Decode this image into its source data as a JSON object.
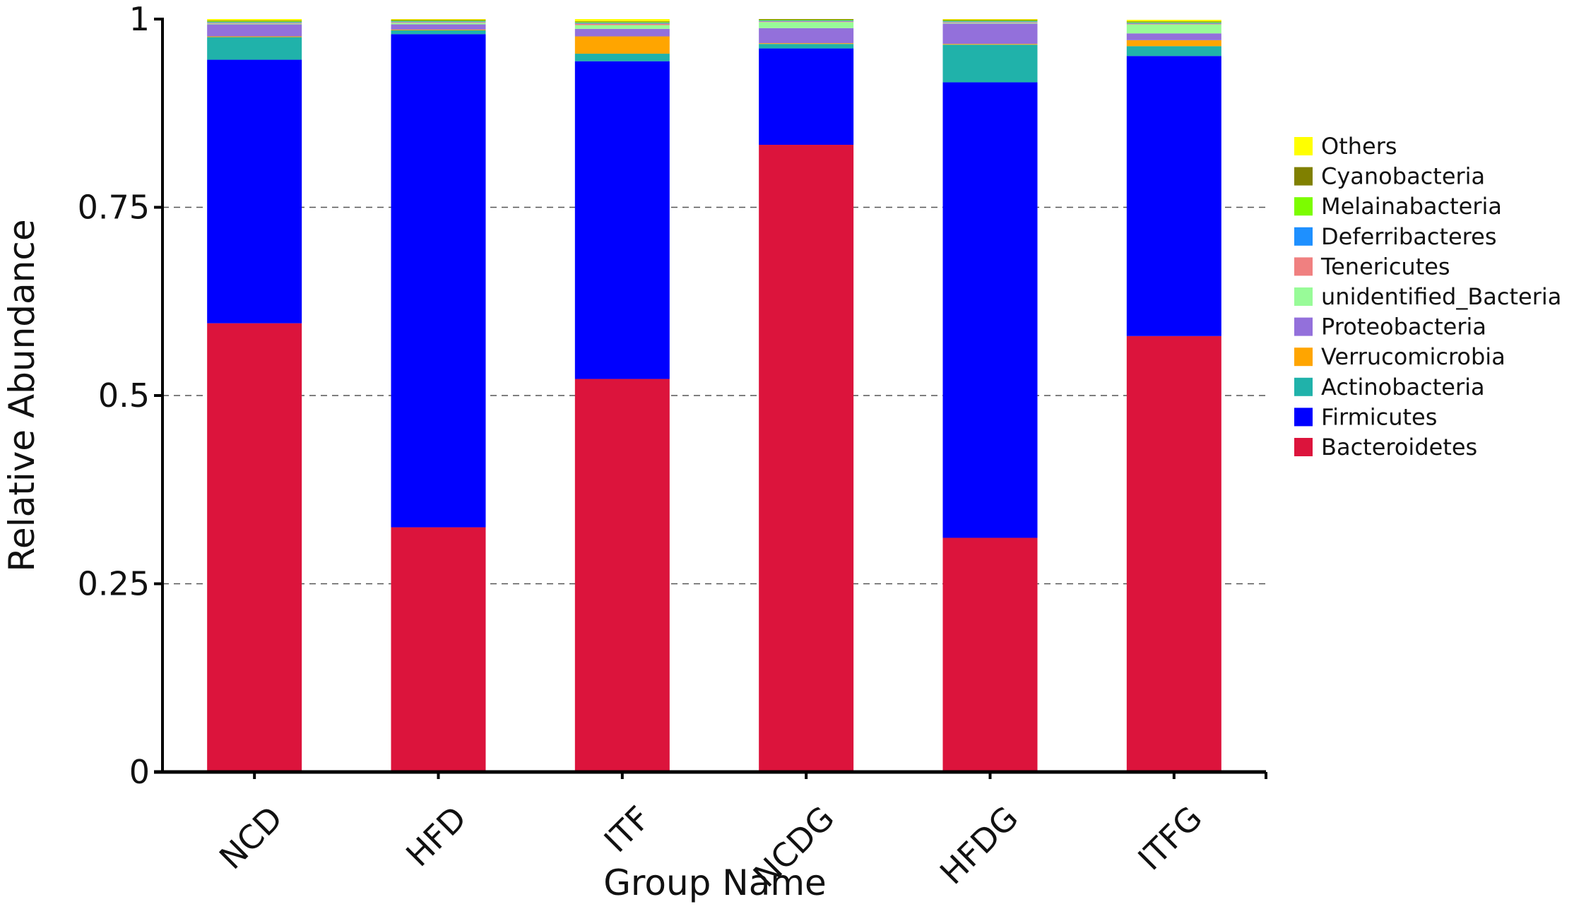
{
  "chart_data": {
    "type": "bar",
    "stacked": true,
    "xlabel": "Group Name",
    "ylabel": "Relative Abundance",
    "ylim": [
      0,
      1
    ],
    "yticks": [
      "0",
      "0.25",
      "0.5",
      "0.75",
      "1"
    ],
    "grid": "horizontal dashed",
    "legend_position": "right",
    "categories": [
      "NCD",
      "HFD",
      "ITF",
      "NCDG",
      "HFDG",
      "ITFG"
    ],
    "series": [
      {
        "name": "Bacteroidetes",
        "color": "#dc143c",
        "values": [
          0.596,
          0.325,
          0.522,
          0.833,
          0.311,
          0.579
        ]
      },
      {
        "name": "Firmicutes",
        "color": "#0000ff",
        "values": [
          0.35,
          0.655,
          0.422,
          0.128,
          0.605,
          0.372
        ]
      },
      {
        "name": "Actinobacteria",
        "color": "#20b2aa",
        "values": [
          0.03,
          0.005,
          0.01,
          0.006,
          0.05,
          0.013
        ]
      },
      {
        "name": "Verrucomicrobia",
        "color": "#ffa500",
        "values": [
          0.001,
          0.001,
          0.023,
          0.001,
          0.001,
          0.008
        ]
      },
      {
        "name": "Proteobacteria",
        "color": "#9370db",
        "values": [
          0.016,
          0.007,
          0.01,
          0.02,
          0.027,
          0.009
        ]
      },
      {
        "name": "unidentified_Bacteria",
        "color": "#98fb98",
        "values": [
          0.001,
          0.002,
          0.005,
          0.008,
          0.001,
          0.012
        ]
      },
      {
        "name": "Tenericutes",
        "color": "#f08080",
        "values": [
          0.001,
          0.001,
          0.002,
          0.001,
          0.001,
          0.001
        ]
      },
      {
        "name": "Deferribacteres",
        "color": "#1e90ff",
        "values": [
          0.001,
          0.001,
          0.001,
          0.001,
          0.001,
          0.001
        ]
      },
      {
        "name": "Melainabacteria",
        "color": "#7cfc00",
        "values": [
          0.001,
          0.001,
          0.001,
          0.001,
          0.001,
          0.001
        ]
      },
      {
        "name": "Cyanobacteria",
        "color": "#808000",
        "values": [
          0.001,
          0.001,
          0.001,
          0.001,
          0.001,
          0.001
        ]
      },
      {
        "name": "Others",
        "color": "#ffff00",
        "values": [
          0.002,
          0.001,
          0.003,
          0.0,
          0.001,
          0.002
        ]
      }
    ]
  }
}
